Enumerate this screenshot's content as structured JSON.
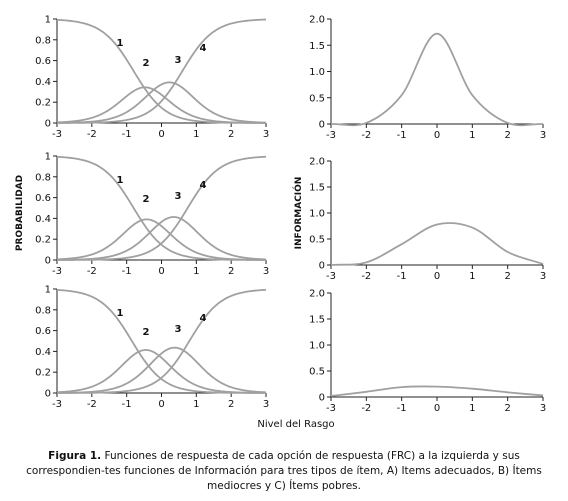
{
  "figure": {
    "ylabel_left": "PROBABILIDAD",
    "ylabel_right": "INFORMACIÓN",
    "xlabel": "Nivel del Rasgo",
    "caption_bold": "Figura 1.",
    "caption_text": " Funciones de respuesta de cada opción de respuesta (FRC) a la izquierda y sus correspondien-tes funciones de Información para tres tipos de ítem, A) Items adecuados, B) Ítems mediocres y C) Ítems pobres.",
    "curve_color": "#a0a0a0"
  },
  "chart_data": [
    {
      "type": "line",
      "panel": "A-FRC",
      "x": [
        -3,
        -2,
        -1,
        0,
        1,
        2,
        3
      ],
      "xlim": [
        -3,
        3
      ],
      "ylim": [
        0,
        1
      ],
      "yticks": [
        "0",
        "0.2",
        "0.4",
        "0.6",
        "0.8",
        "1"
      ],
      "model": {
        "a": 2.2,
        "b": [
          -0.8,
          -0.15,
          0.6
        ]
      },
      "series": [
        {
          "name": "1",
          "values": [
            1.0,
            0.98,
            0.77,
            0.15,
            0.01,
            0.0,
            0.0
          ]
        },
        {
          "name": "2",
          "values": [
            0.0,
            0.02,
            0.2,
            0.43,
            0.06,
            0.0,
            0.0
          ]
        },
        {
          "name": "3",
          "values": [
            0.0,
            0.0,
            0.02,
            0.33,
            0.5,
            0.06,
            0.0
          ]
        },
        {
          "name": "4",
          "values": [
            0.0,
            0.0,
            0.0,
            0.09,
            0.43,
            0.92,
            0.99
          ]
        }
      ]
    },
    {
      "type": "line",
      "panel": "A-INFO",
      "x": [
        -3,
        -2,
        -1,
        0,
        1,
        2,
        3
      ],
      "xlim": [
        -3,
        3
      ],
      "ylim": [
        0,
        2
      ],
      "yticks": [
        "0",
        "0.5",
        "1.0",
        "1.5",
        "2.0"
      ],
      "peak": {
        "x": 0.0,
        "y": 1.72
      },
      "values": [
        0.0,
        0.02,
        0.55,
        1.72,
        0.55,
        0.02,
        0.0
      ]
    },
    {
      "type": "line",
      "panel": "B-FRC",
      "x": [
        -3,
        -2,
        -1,
        0,
        1,
        2,
        3
      ],
      "xlim": [
        -3,
        3
      ],
      "ylim": [
        0,
        1
      ],
      "yticks": [
        "0",
        "0.2",
        "0.4",
        "0.6",
        "0.8",
        "1"
      ],
      "model": {
        "a": 2.2,
        "b": [
          -0.8,
          -0.05,
          0.75
        ]
      },
      "series": [
        {
          "name": "1",
          "values": [
            1.0,
            0.98,
            0.77,
            0.15,
            0.01,
            0.0,
            0.0
          ]
        },
        {
          "name": "2",
          "values": [
            0.0,
            0.02,
            0.22,
            0.47,
            0.05,
            0.0,
            0.0
          ]
        },
        {
          "name": "3",
          "values": [
            0.0,
            0.0,
            0.01,
            0.31,
            0.58,
            0.07,
            0.0
          ]
        },
        {
          "name": "4",
          "values": [
            0.0,
            0.0,
            0.0,
            0.06,
            0.36,
            0.93,
            0.99
          ]
        }
      ]
    },
    {
      "type": "line",
      "panel": "B-INFO",
      "x": [
        -3,
        -2,
        -1,
        0,
        1,
        2,
        3
      ],
      "xlim": [
        -3,
        3
      ],
      "ylim": [
        0,
        2
      ],
      "yticks": [
        "0",
        "0.5",
        "1.0",
        "1.5",
        "2.0"
      ],
      "peak": {
        "x": 0.4,
        "y": 0.87
      },
      "values": [
        0.0,
        0.05,
        0.4,
        0.78,
        0.72,
        0.25,
        0.02
      ]
    },
    {
      "type": "line",
      "panel": "C-FRC",
      "x": [
        -3,
        -2,
        -1,
        0,
        1,
        2,
        3
      ],
      "xlim": [
        -3,
        3
      ],
      "ylim": [
        0,
        1
      ],
      "yticks": [
        "0",
        "0.2",
        "0.4",
        "0.6",
        "0.8",
        "1"
      ],
      "model": {
        "a": 2.2,
        "b": [
          -0.85,
          -0.05,
          0.8
        ]
      },
      "series": [
        {
          "name": "1",
          "values": [
            1.0,
            0.98,
            0.79,
            0.14,
            0.01,
            0.0,
            0.0
          ]
        },
        {
          "name": "2",
          "values": [
            0.0,
            0.02,
            0.2,
            0.47,
            0.05,
            0.0,
            0.0
          ]
        },
        {
          "name": "3",
          "values": [
            0.0,
            0.0,
            0.01,
            0.33,
            0.6,
            0.07,
            0.0
          ]
        },
        {
          "name": "4",
          "values": [
            0.0,
            0.0,
            0.0,
            0.06,
            0.34,
            0.93,
            0.99
          ]
        }
      ]
    },
    {
      "type": "line",
      "panel": "C-INFO",
      "x": [
        -3,
        -2,
        -1,
        0,
        1,
        2,
        3
      ],
      "xlim": [
        -3,
        3
      ],
      "ylim": [
        0,
        2
      ],
      "yticks": [
        "0",
        "0.5",
        "1.0",
        "1.5",
        "2.0"
      ],
      "peak": {
        "x": -0.4,
        "y": 0.21
      },
      "values": [
        0.02,
        0.1,
        0.19,
        0.2,
        0.16,
        0.09,
        0.03
      ]
    }
  ]
}
